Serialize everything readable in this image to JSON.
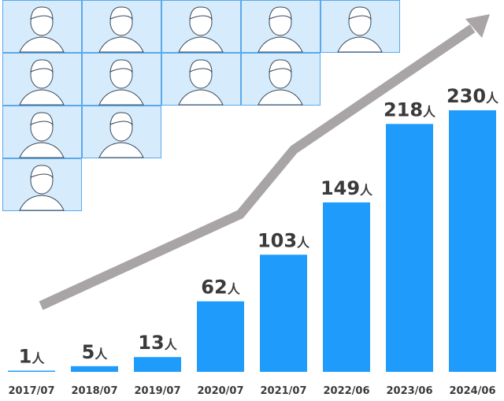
{
  "chart_data": {
    "type": "bar",
    "categories": [
      "2017/07",
      "2018/07",
      "2019/07",
      "2020/07",
      "2021/07",
      "2022/06",
      "2023/06",
      "2024/06"
    ],
    "values": [
      1,
      5,
      13,
      62,
      103,
      149,
      218,
      230
    ],
    "value_labels": [
      "1人",
      "5人",
      "13人",
      "62人",
      "103人",
      "149人",
      "218人",
      "230人"
    ],
    "color": "#1e9bfb"
  }
}
